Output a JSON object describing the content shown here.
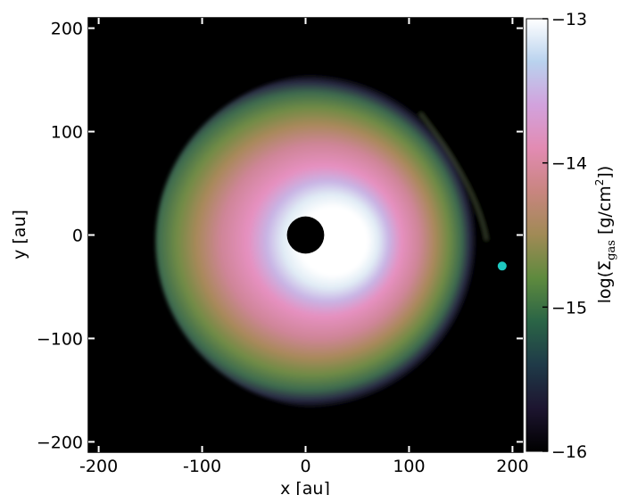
{
  "chart_data": {
    "type": "heatmap",
    "title": "",
    "xlabel": "x [au]",
    "ylabel": "y [au]",
    "xlim": [
      -210,
      210
    ],
    "ylim": [
      -210,
      210
    ],
    "x_ticks": [
      -200,
      -100,
      0,
      100,
      200
    ],
    "y_ticks": [
      -200,
      -100,
      0,
      100,
      200
    ],
    "x_tick_labels": [
      "-200",
      "-100",
      "0",
      "100",
      "200"
    ],
    "y_tick_labels": [
      "−200",
      "−100",
      "0",
      "100",
      "200"
    ],
    "grid": false,
    "colorbar": {
      "label": "log(Σgas [g/cm²])",
      "label_parts": {
        "prefix": "log(Σ",
        "subscript": "gas",
        "middle": "  [g/cm",
        "superscript": "2",
        "suffix": "])"
      },
      "range": [
        -16,
        -13
      ],
      "ticks": [
        -16,
        -15,
        -14,
        -13
      ],
      "tick_labels": [
        "−16",
        "−15",
        "−14",
        "−13"
      ],
      "colors": [
        "#000000",
        "#1d1530",
        "#1f3a48",
        "#2a6446",
        "#5e8a3e",
        "#a08a55",
        "#c8857f",
        "#e28bb2",
        "#d2a2dd",
        "#b9d2ee",
        "#ffffff"
      ]
    },
    "disk": {
      "center_au": [
        0,
        0
      ],
      "inner_hole_radius_au": 18,
      "peak_log_sigma": -13.0,
      "outer_radius_au": 165,
      "outer_edge_shift_x_au": 20,
      "outer_edge_shift_y_au": 6,
      "tail_point_au": [
        175,
        -5
      ],
      "notes_colors": {
        "hole": "#000000",
        "background": "#000000"
      }
    },
    "companion": {
      "x_au": 190,
      "y_au": -30,
      "color": "#1ec8c0"
    }
  }
}
